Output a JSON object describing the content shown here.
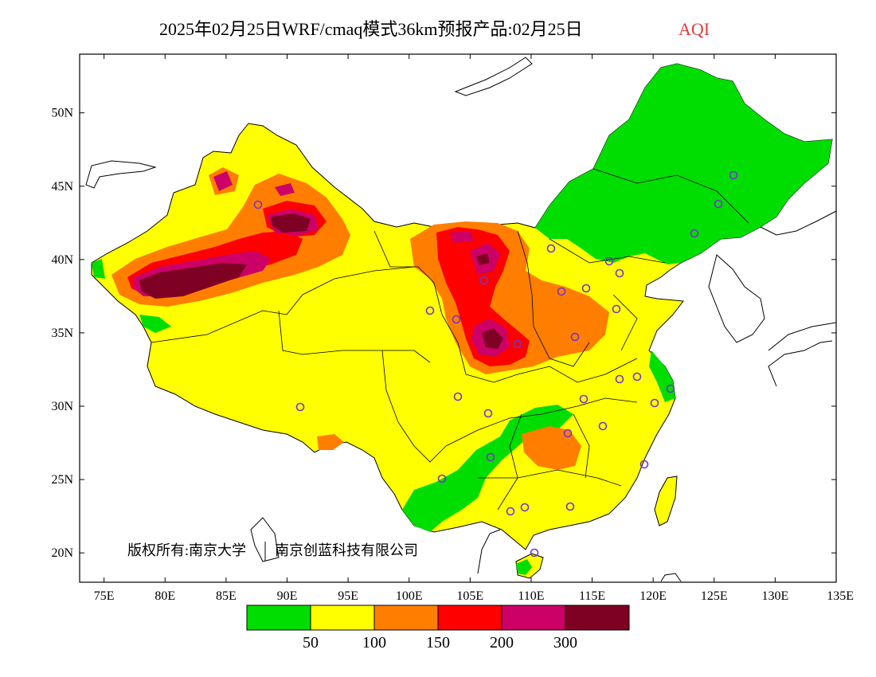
{
  "title": {
    "main": "2025年02月25日WRF/cmaq模式36km预报产品:02月25日",
    "variable": "AQI"
  },
  "map": {
    "lon_range": [
      73,
      135
    ],
    "lat_range": [
      18,
      54
    ],
    "x_tick_labels": [
      "75E",
      "80E",
      "85E",
      "90E",
      "95E",
      "100E",
      "105E",
      "110E",
      "115E",
      "120E",
      "125E",
      "130E",
      "135E"
    ],
    "y_tick_labels": [
      "20N",
      "25N",
      "30N",
      "35N",
      "40N",
      "45N",
      "50N"
    ],
    "copyright_left": "版权所有:南京大学",
    "copyright_right": "南京创蓝科技有限公司"
  },
  "legend": {
    "colors": [
      "#00dd00",
      "#ffff00",
      "#ff7e00",
      "#ff0000",
      "#cc0066",
      "#7e0023"
    ],
    "labels": [
      "50",
      "100",
      "150",
      "200",
      "300"
    ]
  },
  "station_marker_color": "#7733cc"
}
